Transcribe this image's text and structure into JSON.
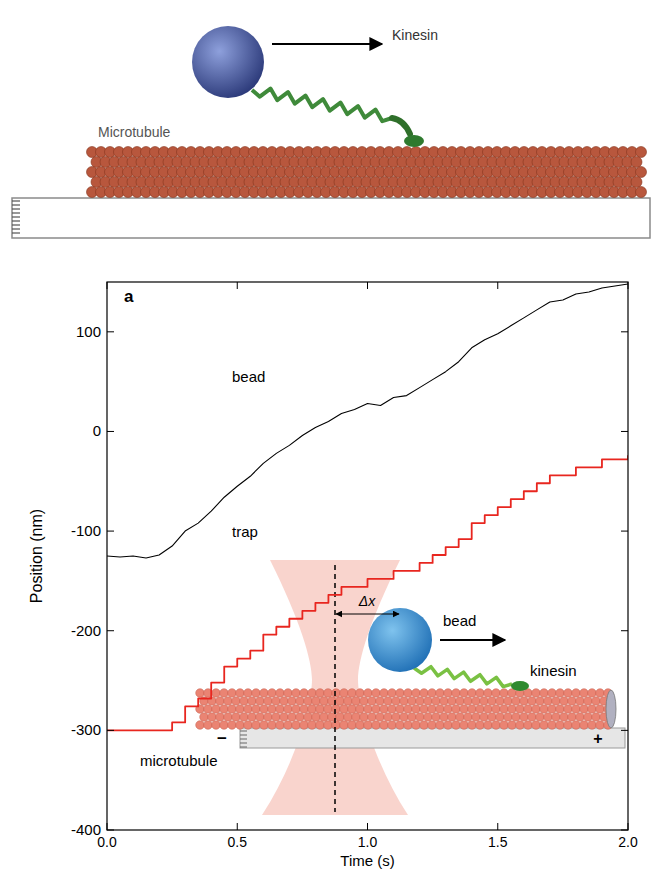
{
  "illustration": {
    "motor_label": "Kinesin",
    "track_label": "Microtubule"
  },
  "chart_data": {
    "type": "line",
    "x_label": "Time (s)",
    "y_label": "Position (nm)",
    "annotations": [
      "a",
      "Δx",
      "bead",
      "kinesin",
      "microtubule",
      "−",
      "+"
    ],
    "x": [
      0,
      0.05,
      0.1,
      0.15,
      0.2,
      0.25,
      0.3,
      0.35,
      0.4,
      0.45,
      0.5,
      0.55,
      0.6,
      0.65,
      0.7,
      0.75,
      0.8,
      0.85,
      0.9,
      0.95,
      1.0,
      1.05,
      1.1,
      1.15,
      1.2,
      1.25,
      1.3,
      1.35,
      1.4,
      1.45,
      1.5,
      1.55,
      1.6,
      1.65,
      1.7,
      1.75,
      1.8,
      1.85,
      1.9,
      1.95,
      2.0
    ],
    "series": [
      {
        "name": "bead",
        "color": "#000000",
        "line_style": "solid",
        "values": [
          -125,
          -126,
          -125,
          -127,
          -124,
          -115,
          -100,
          -92,
          -80,
          -66,
          -55,
          -45,
          -32,
          -22,
          -14,
          -4,
          4,
          10,
          18,
          22,
          28,
          26,
          34,
          36,
          44,
          52,
          60,
          70,
          84,
          92,
          98,
          106,
          114,
          122,
          130,
          132,
          138,
          140,
          144,
          146,
          148
        ]
      },
      {
        "name": "trap",
        "color": "#e8261f",
        "line_style": "steps",
        "values": [
          -300,
          -300,
          -300,
          -300,
          -300,
          -292,
          -276,
          -268,
          -252,
          -236,
          -228,
          -220,
          -204,
          -196,
          -188,
          -180,
          -172,
          -164,
          -156,
          -156,
          -148,
          -148,
          -140,
          -140,
          -132,
          -124,
          -116,
          -108,
          -92,
          -84,
          -76,
          -68,
          -60,
          -52,
          -44,
          -44,
          -36,
          -36,
          -28,
          -28,
          -24
        ]
      }
    ],
    "xlim": [
      0,
      2
    ],
    "xticks": [
      {
        "value": 0,
        "label": "0.0"
      },
      0.5,
      {
        "value": 1,
        "label": "1.0"
      },
      1.5,
      {
        "value": 2,
        "label": "2.0"
      }
    ],
    "ylim": [
      -400,
      150
    ],
    "yticks": [
      -400,
      -300,
      -200,
      -100,
      0,
      100
    ],
    "grid": false
  }
}
